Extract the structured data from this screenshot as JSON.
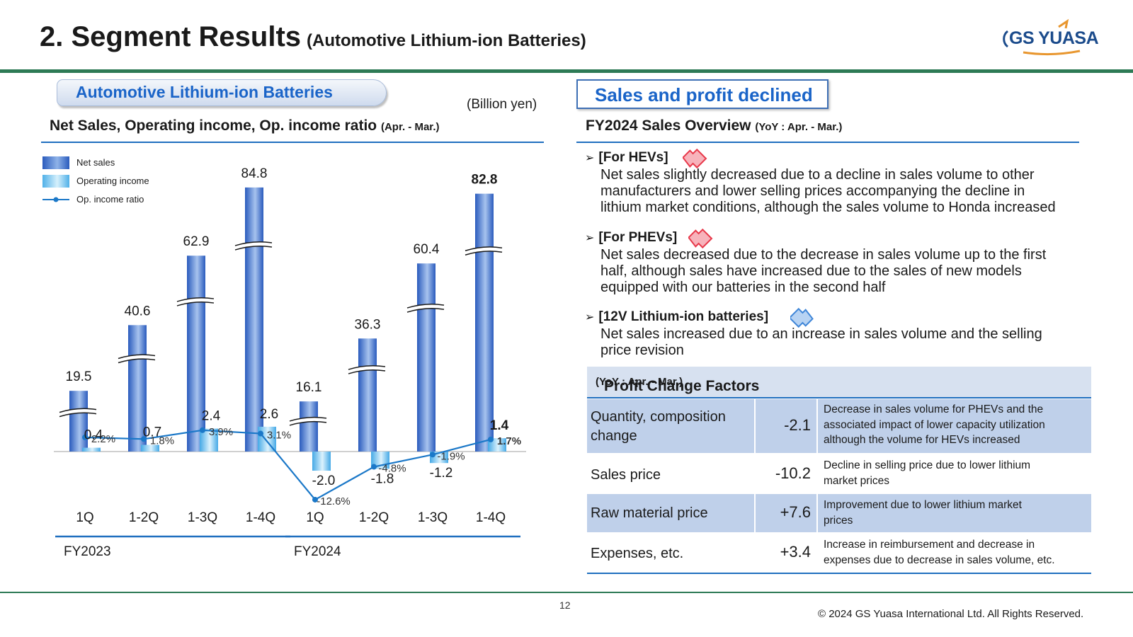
{
  "title": {
    "main": "2. Segment Results",
    "sub": "(Automotive Lithium-ion Batteries)"
  },
  "logo": {
    "text": "GS YUASA"
  },
  "left": {
    "segment_tag": "Automotive Lithium-ion Batteries",
    "unit": "(Billion yen)",
    "heading": "Net Sales, Operating income, Op. income ratio",
    "heading_period": "(Apr. - Mar.)"
  },
  "legend": {
    "net_sales": "Net sales",
    "operating_income": "Operating income",
    "ratio": "Op. income ratio"
  },
  "chart_data": {
    "type": "bar",
    "title": "Net Sales, Operating income, Op. income ratio (Apr. - Mar.)",
    "unit": "(Billion yen)",
    "categories": [
      "1Q",
      "1-2Q",
      "1-3Q",
      "1-4Q",
      "1Q",
      "1-2Q",
      "1-3Q",
      "1-4Q"
    ],
    "groups": [
      {
        "label": "FY2023",
        "from": 0,
        "to": 3
      },
      {
        "label": "FY2024",
        "from": 4,
        "to": 7
      }
    ],
    "series": [
      {
        "name": "Net sales",
        "kind": "bar",
        "axis_break": true,
        "values": [
          19.5,
          40.6,
          62.9,
          84.8,
          16.1,
          36.3,
          60.4,
          82.8
        ],
        "labels": [
          "19.5",
          "40.6",
          "62.9",
          "84.8",
          "16.1",
          "36.3",
          "60.4",
          "82.8"
        ]
      },
      {
        "name": "Operating income",
        "kind": "bar",
        "values": [
          0.4,
          0.7,
          2.4,
          2.6,
          -2.0,
          -1.8,
          -1.2,
          1.4
        ],
        "labels": [
          "0.4",
          "0.7",
          "2.4",
          "2.6",
          "-2.0",
          "-1.8",
          "-1.2",
          "1.4"
        ]
      },
      {
        "name": "Op. income ratio",
        "kind": "line",
        "unit": "%",
        "values": [
          2.2,
          1.8,
          3.9,
          3.1,
          -12.6,
          -4.8,
          -1.9,
          1.7
        ],
        "labels": [
          "2.2%",
          "1.8%",
          "3.9%",
          "3.1%",
          "-12.6%",
          "-4.8%",
          "-1.9%",
          "1.7%"
        ]
      }
    ],
    "bold_labels_last_category": true,
    "grid": false,
    "legend_position": "top-left"
  },
  "right": {
    "status": "Sales and profit declined",
    "overview_heading": "FY2024 Sales Overview",
    "overview_period": "(YoY : Apr. - Mar.)",
    "bullets": [
      {
        "marker": "➢",
        "title": "[For HEVs]",
        "trend": "down",
        "lines": [
          "Net sales slightly decreased due to a decline in sales volume to other",
          "manufacturers and lower selling prices accompanying the decline in",
          "lithium market conditions, although the sales volume to Honda increased"
        ]
      },
      {
        "marker": "➢",
        "title": "[For PHEVs]",
        "trend": "down",
        "lines": [
          "Net sales decreased due to the decrease in sales volume up to the first",
          "half, although sales have increased due to the sales of new models",
          "equipped with our batteries in the second half"
        ]
      },
      {
        "marker": "➢",
        "title": "[12V Lithium-ion batteries]",
        "trend": "up",
        "lines": [
          "Net sales increased due to an increase in sales volume and the selling",
          "price revision"
        ]
      }
    ]
  },
  "profit_factors": {
    "heading": "Profit Change Factors",
    "period": "(YoY : Apr. - Mar.)",
    "rows": [
      {
        "factor": [
          "Quantity, composition",
          "change"
        ],
        "value": "-2.1",
        "note": [
          "Decrease in sales volume for PHEVs and the",
          "associated impact of lower capacity utilization",
          "although the volume for HEVs increased"
        ]
      },
      {
        "factor": [
          "Sales price"
        ],
        "value": "-10.2",
        "note": [
          "Decline in selling price due to lower lithium",
          "market prices"
        ]
      },
      {
        "factor": [
          "Raw material price"
        ],
        "value": "+7.6",
        "note": [
          "Improvement due to lower lithium market",
          "prices"
        ]
      },
      {
        "factor": [
          "Expenses, etc."
        ],
        "value": "+3.4",
        "note": [
          "Increase in reimbursement and decrease in",
          "expenses due to decrease in sales volume, etc."
        ]
      }
    ]
  },
  "colors": {
    "accent_blue": "#1a64c8",
    "rule_blue": "#1f6fbf",
    "green": "#2d7a55",
    "ratio_line": "#1b78c8",
    "down_arrow": "#e8384a",
    "up_arrow": "#3f86d8"
  },
  "footer": {
    "page": "12",
    "copyright": "© 2024 GS Yuasa International Ltd. All Rights Reserved."
  }
}
